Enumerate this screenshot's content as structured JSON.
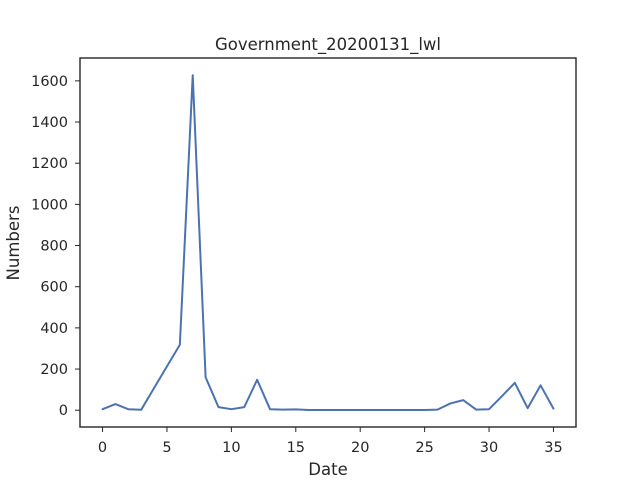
{
  "chart_data": {
    "type": "line",
    "title": "Government_20200131_lwl",
    "xlabel": "Date",
    "ylabel": "Numbers",
    "xlim": [
      -1.75,
      36.75
    ],
    "ylim": [
      -81.5,
      1711
    ],
    "xticks": [
      0,
      5,
      10,
      15,
      20,
      25,
      30,
      35
    ],
    "yticks": [
      0,
      200,
      400,
      600,
      800,
      1000,
      1200,
      1400,
      1600
    ],
    "grid": false,
    "series": [
      {
        "color": "#4c72b0",
        "x": [
          0,
          1,
          2,
          3,
          4,
          5,
          6,
          7,
          8,
          9,
          10,
          11,
          12,
          13,
          14,
          15,
          16,
          17,
          18,
          19,
          20,
          21,
          22,
          23,
          24,
          25,
          26,
          27,
          28,
          29,
          30,
          31,
          32,
          33,
          34,
          35
        ],
        "y": [
          5,
          30,
          5,
          2,
          108,
          213,
          318,
          1627,
          160,
          15,
          5,
          15,
          148,
          5,
          3,
          4,
          1,
          1,
          1,
          1,
          1,
          1,
          1,
          1,
          1,
          1,
          3,
          33,
          49,
          3,
          5,
          68,
          133,
          10,
          121,
          8
        ]
      }
    ]
  }
}
